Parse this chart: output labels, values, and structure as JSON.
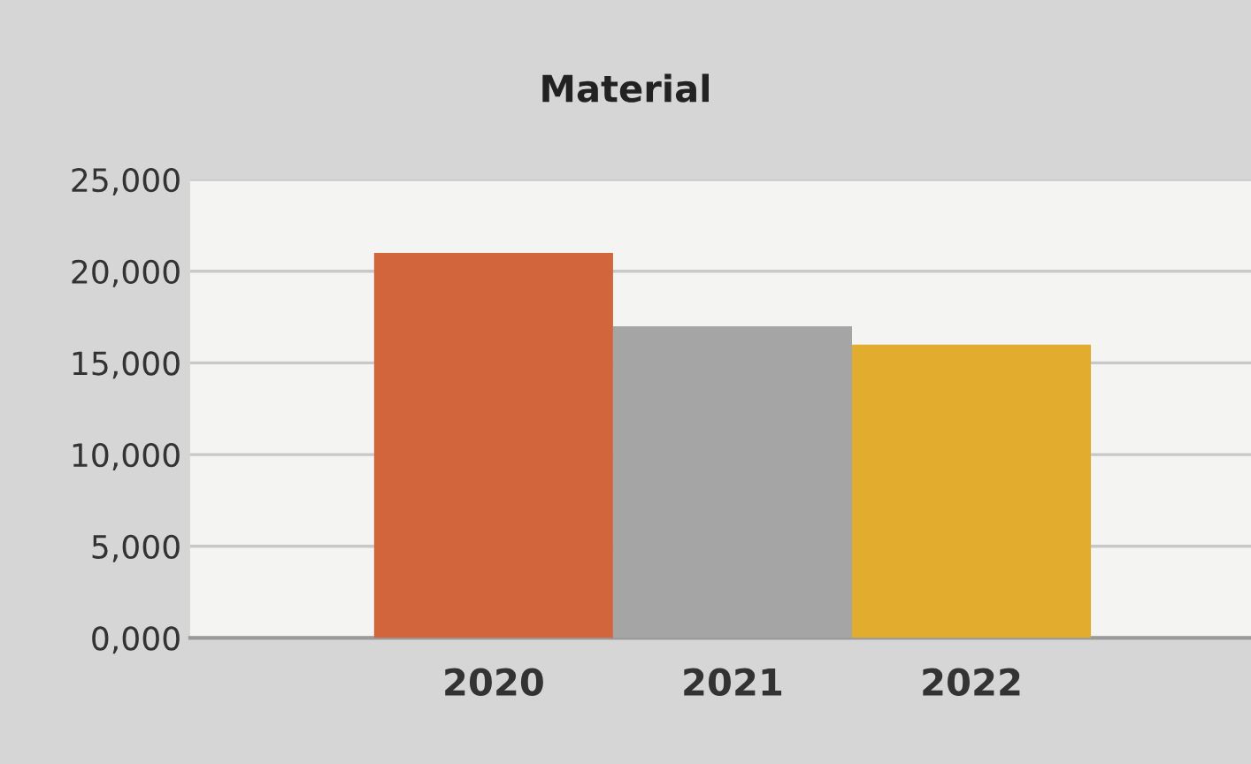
{
  "chart_data": {
    "type": "bar",
    "title": "Material",
    "categories": [
      "2020",
      "2021",
      "2022"
    ],
    "values": [
      21000,
      17000,
      16000
    ],
    "colors": [
      "#d2653c",
      "#a5a5a5",
      "#e2ac2e"
    ],
    "ylim": [
      0,
      25000
    ],
    "yticks": [
      {
        "value": 0,
        "label": "0,000"
      },
      {
        "value": 5000,
        "label": "5,000"
      },
      {
        "value": 10000,
        "label": "10,000"
      },
      {
        "value": 15000,
        "label": "15,000"
      },
      {
        "value": 20000,
        "label": "20,000"
      },
      {
        "value": 25000,
        "label": "25,000"
      }
    ],
    "grid": "y"
  }
}
